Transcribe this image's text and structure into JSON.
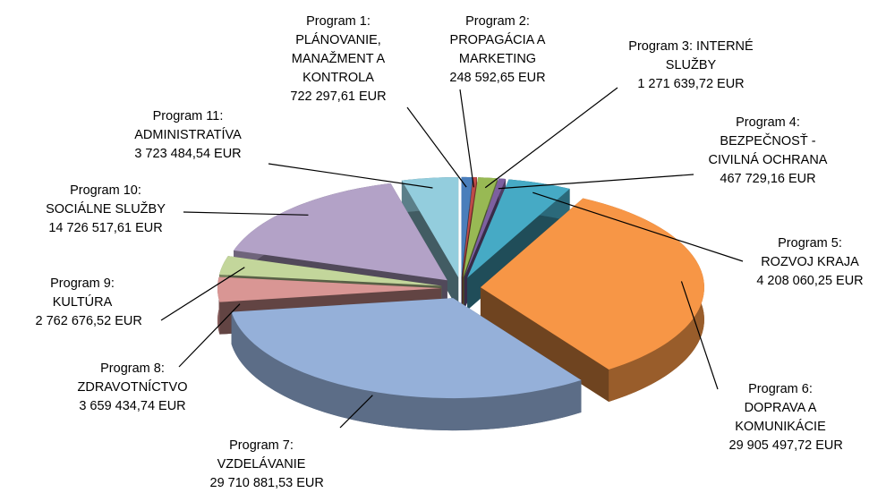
{
  "chart_data": {
    "type": "pie3d",
    "categories": [
      "Program 1: PLÁNOVANIE, MANAŽMENT A KONTROLA",
      "Program 2: PROPAGÁCIA A MARKETING",
      "Program 3: INTERNÉ SLUŽBY",
      "Program 4: BEZPEČNOSŤ - CIVILNÁ OCHRANA",
      "Program 5: ROZVOJ KRAJA",
      "Program 6: DOPRAVA A KOMUNIKÁCIE",
      "Program 7: VZDELÁVANIE",
      "Program 8: ZDRAVOTNÍCTVO",
      "Program 9: KULTÚRA",
      "Program 10: SOCIÁLNE SLUŽBY",
      "Program 11: ADMINISTRATÍVA"
    ],
    "values": [
      722297.61,
      248592.65,
      1271639.72,
      467729.16,
      4208060.25,
      29905497.72,
      29710881.53,
      3659434.74,
      2762676.52,
      14726517.61,
      3723484.54
    ],
    "value_labels": [
      "722 297,61 EUR",
      "248 592,65 EUR",
      "1 271 639,72 EUR",
      "467 729,16 EUR",
      "4 208 060,25 EUR",
      "29 905 497,72 EUR",
      "29 710 881,53 EUR",
      "3 659 434,74 EUR",
      "2 762 676,52 EUR",
      "14 726 517,61 EUR",
      "3 723 484,54 EUR"
    ],
    "colors": [
      "#4a7ebb",
      "#be4b48",
      "#98b954",
      "#7d60a0",
      "#46aac5",
      "#f79646",
      "#95b0d9",
      "#d99694",
      "#c3d69b",
      "#b3a2c7",
      "#93cddd"
    ]
  }
}
